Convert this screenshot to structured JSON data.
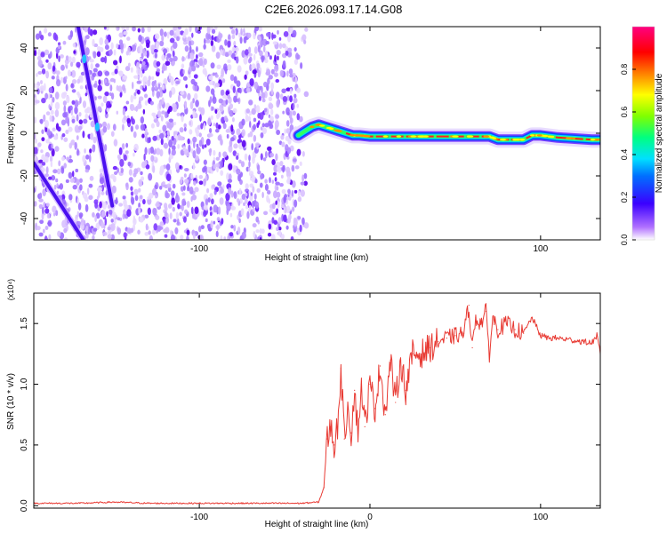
{
  "title": "C2E6.2026.093.17.14.G08",
  "chart_data": [
    {
      "type": "heatmap",
      "panel": "top",
      "xlabel": "Height of straight line (km)",
      "ylabel": "Frequency (Hz)",
      "xlim": [
        -197,
        135
      ],
      "ylim": [
        -50,
        50
      ],
      "xticks": [
        -100,
        0,
        100
      ],
      "xtick_labels": [
        "-100",
        "",
        "100"
      ],
      "yticks": [
        -40,
        -20,
        0,
        20,
        40
      ],
      "ytick_labels": [
        "-40",
        "-20",
        "0",
        "20",
        "40"
      ],
      "colorbar": {
        "label": "Normalized spectral amplitude",
        "range": [
          0,
          1
        ],
        "ticks": [
          0,
          0.2,
          0.4,
          0.6,
          0.8
        ],
        "tick_labels": [
          "0.0",
          "0.2",
          "0.4",
          "0.6",
          "0.8"
        ]
      },
      "features": {
        "noise_region_x": [
          -197,
          -37
        ],
        "streak_a": {
          "from": [
            -171,
            50
          ],
          "to": [
            -151,
            -34
          ]
        },
        "streak_b": {
          "from": [
            -197,
            -14
          ],
          "to": [
            -168,
            -50
          ]
        },
        "signal_track": {
          "x": [
            -42,
            -38,
            -34,
            -30,
            -26,
            -22,
            -18,
            -14,
            -10,
            -6,
            0,
            20,
            40,
            60,
            70,
            75,
            80,
            90,
            95,
            100,
            110,
            120,
            130,
            135
          ],
          "y": [
            -1,
            1,
            3,
            4,
            3,
            2,
            1,
            0,
            -1,
            -1,
            -1.5,
            -1.5,
            -1.5,
            -1.5,
            -1.5,
            -3,
            -3,
            -3,
            -1,
            -1,
            -2,
            -2.5,
            -3,
            -3
          ]
        }
      }
    },
    {
      "type": "line",
      "panel": "bottom",
      "xlabel": "Height of straight line (km)",
      "ylabel": "SNR (10 * v/v)",
      "y_multiplier": "(x10⁴)",
      "xlim": [
        -197,
        135
      ],
      "ylim": [
        -0.02,
        1.75
      ],
      "xticks": [
        -100,
        0,
        100
      ],
      "xtick_labels": [
        "-100",
        "0",
        "100"
      ],
      "yticks": [
        0.0,
        0.5,
        1.0,
        1.5
      ],
      "ytick_labels": [
        "0.0",
        "0.5",
        "1.0",
        "1.5"
      ],
      "color": "#e83a33",
      "series": [
        {
          "x": [
            -197,
            -170,
            -150,
            -130,
            -100,
            -70,
            -40,
            -30,
            -27,
            -25,
            -23,
            -21,
            -19,
            -17,
            -15,
            -13,
            -11,
            -9,
            -7,
            -5,
            -3,
            0,
            3,
            6,
            9,
            12,
            15,
            18,
            21,
            25,
            30,
            35,
            40,
            45,
            50,
            55,
            58,
            60,
            62,
            65,
            68,
            70,
            72,
            75,
            80,
            85,
            90,
            95,
            100,
            105,
            110,
            115,
            120,
            125,
            130,
            133,
            135
          ],
          "y": [
            0.02,
            0.02,
            0.03,
            0.02,
            0.02,
            0.02,
            0.02,
            0.03,
            0.15,
            0.55,
            0.65,
            0.5,
            0.65,
            1.13,
            0.55,
            0.85,
            0.6,
            0.95,
            0.6,
            1.0,
            0.65,
            1.0,
            0.8,
            1.15,
            0.75,
            1.2,
            0.85,
            1.2,
            0.95,
            1.25,
            1.25,
            1.3,
            1.35,
            1.38,
            1.4,
            1.42,
            1.65,
            1.3,
            1.55,
            1.5,
            1.6,
            1.25,
            1.55,
            1.45,
            1.5,
            1.45,
            1.42,
            1.55,
            1.4,
            1.38,
            1.38,
            1.37,
            1.36,
            1.35,
            1.34,
            1.4,
            1.25
          ]
        }
      ]
    }
  ]
}
